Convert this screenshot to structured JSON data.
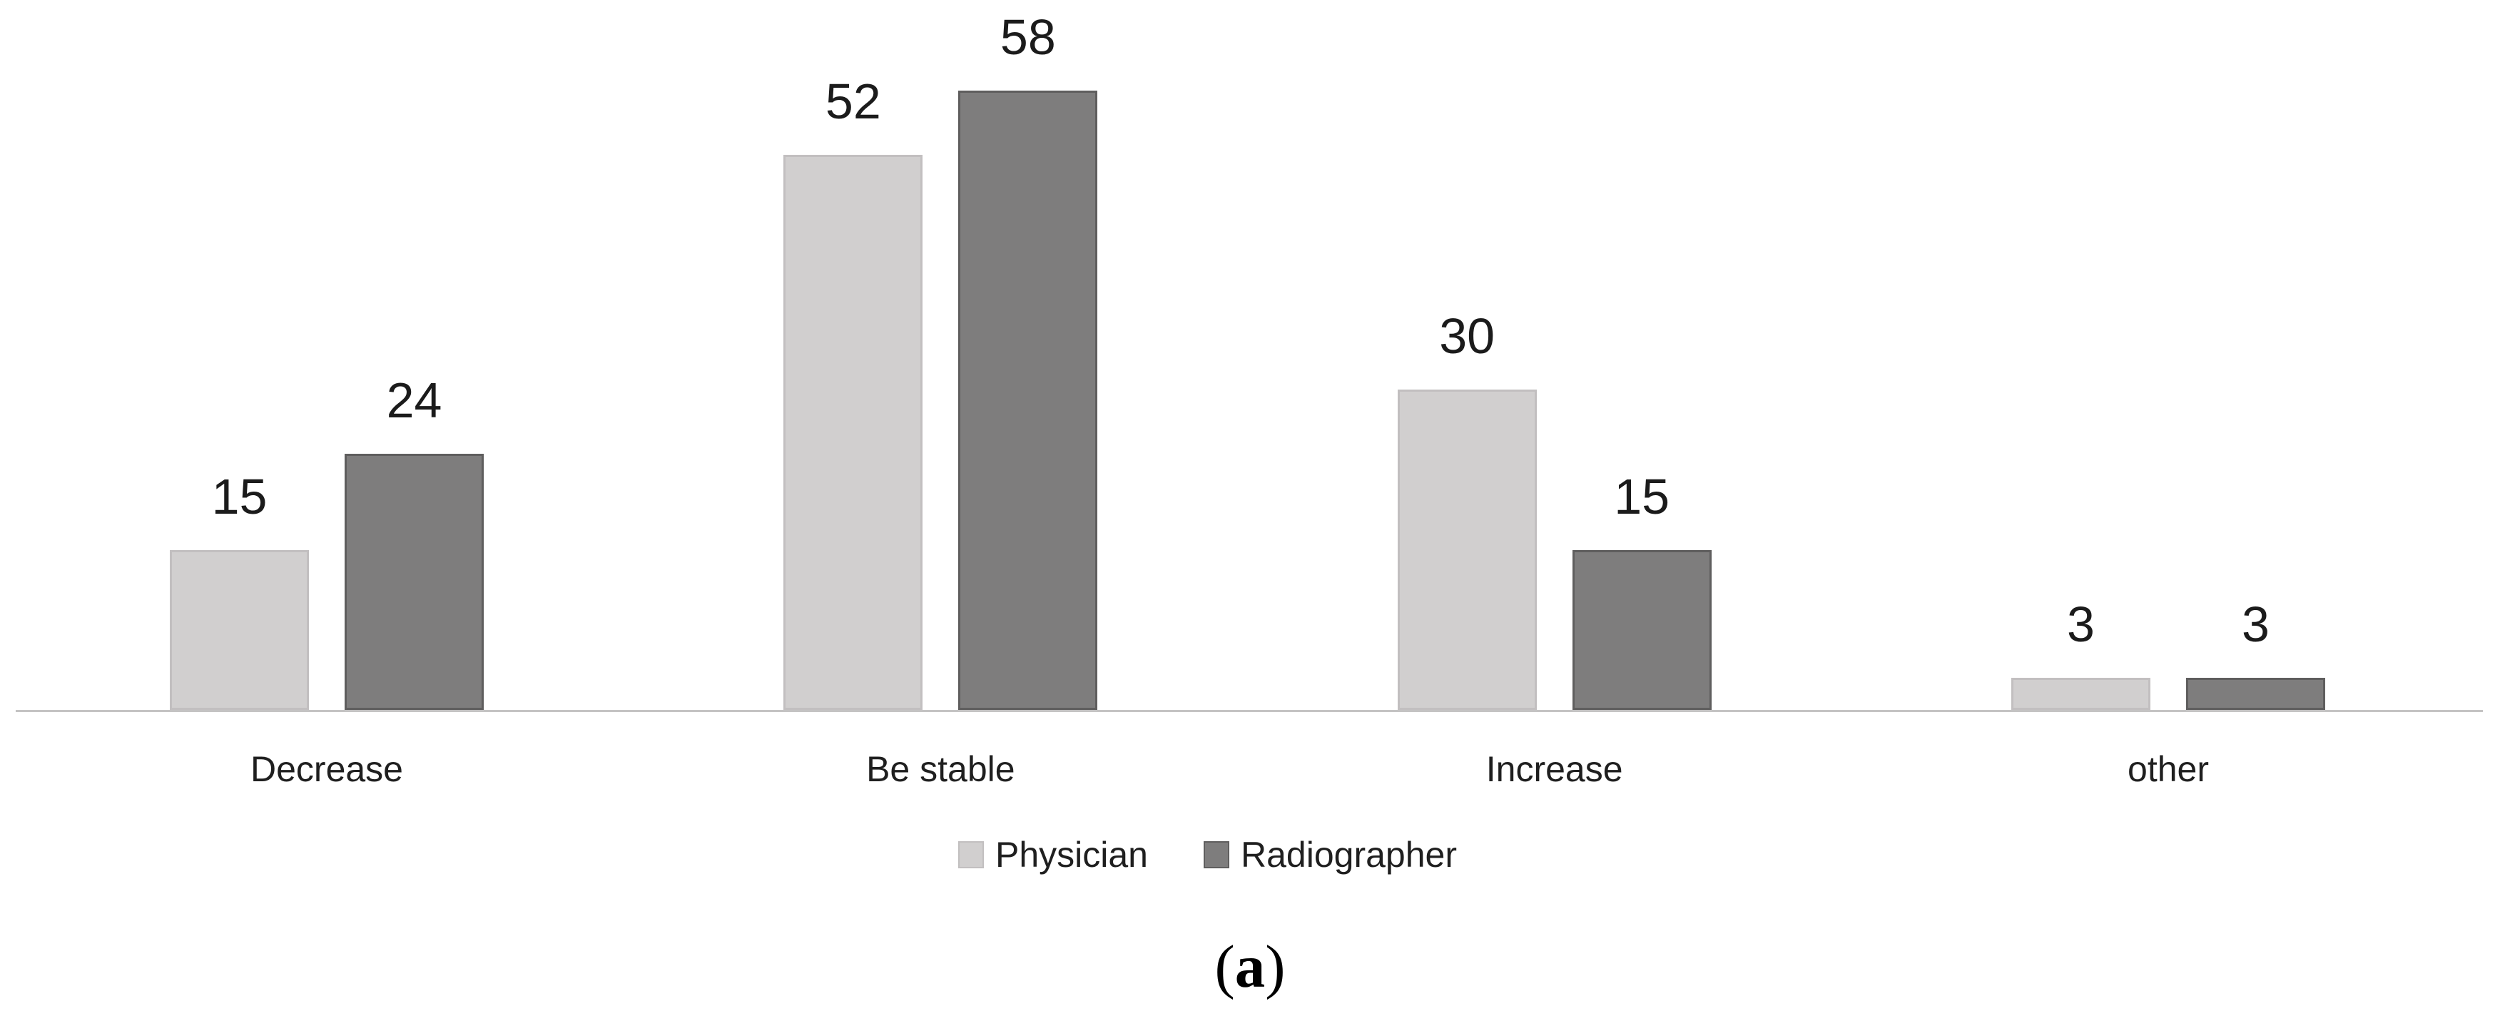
{
  "figure": {
    "caption_open": "(",
    "caption_letter": "a",
    "caption_close": ")"
  },
  "chart_data": {
    "type": "bar",
    "title": "",
    "xlabel": "",
    "ylabel": "",
    "categories": [
      "Decrease",
      "Be stable",
      "Increase",
      "other"
    ],
    "series": [
      {
        "name": "Physician",
        "color": "#d1cfcf",
        "border_color": "#c2bfc0",
        "values": [
          15,
          52,
          30,
          3
        ]
      },
      {
        "name": "Radiographer",
        "color": "#7e7d7d",
        "border_color": "#5f5e5e",
        "values": [
          24,
          58,
          15,
          3
        ]
      }
    ],
    "value_labels_shown": true,
    "ylim": [
      0,
      58
    ],
    "grid": "off",
    "y_axis_shown": false,
    "x_axis_baseline_shown": true,
    "legend_position": "bottom-center"
  },
  "colors": {
    "background": "#ffffff",
    "baseline": "#c4c3c3",
    "text": "#1f1f1f"
  }
}
